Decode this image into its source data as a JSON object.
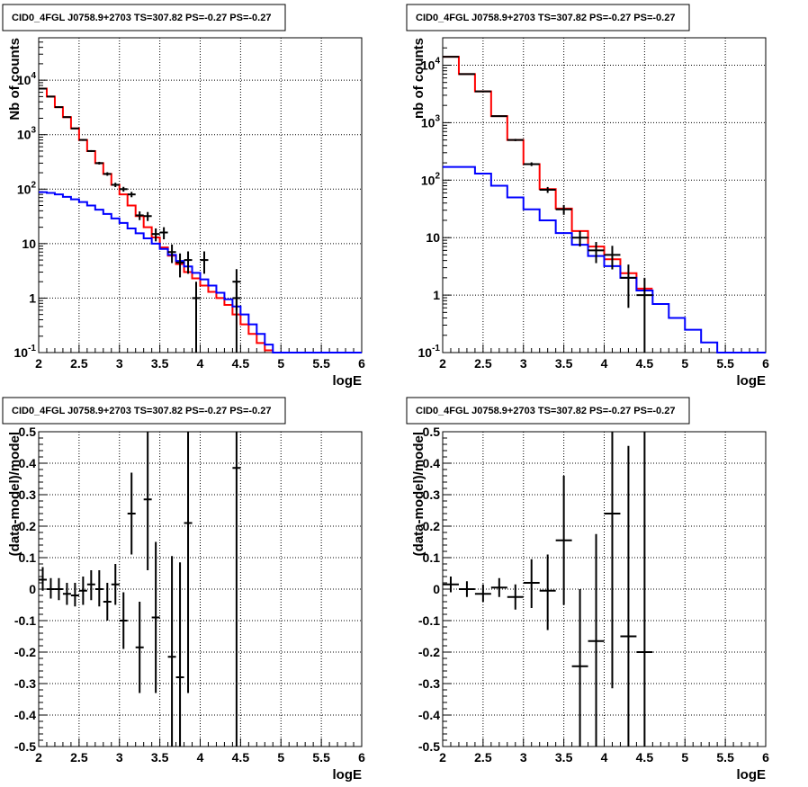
{
  "chart_data": [
    {
      "type": "line",
      "kind": "spectrum",
      "title": "CID0_4FGL J0758.9+2703 TS=307.82 PS=-0.27 PS=-0.27",
      "xlabel": "logE",
      "ylabel": "Nb of counts",
      "xlim": [
        2,
        6
      ],
      "ylim": [
        0.1,
        60000
      ],
      "yscale": "log",
      "grid": true,
      "x_ticks": [
        "2",
        "2.5",
        "3",
        "3.5",
        "4",
        "4.5",
        "5",
        "5.5",
        "6"
      ],
      "x_tick_values": [
        2,
        2.5,
        3,
        3.5,
        4,
        4.5,
        5,
        5.5,
        6
      ],
      "y_ticks": [
        "10^-1",
        "1",
        "10",
        "10^2",
        "10^3",
        "10^4"
      ],
      "y_tick_values": [
        0.1,
        1,
        10,
        100,
        1000,
        10000
      ],
      "bin_edges": [
        2.0,
        2.1,
        2.2,
        2.3,
        2.4,
        2.5,
        2.6,
        2.7,
        2.8,
        2.9,
        3.0,
        3.1,
        3.2,
        3.3,
        3.4,
        3.5,
        3.6,
        3.7,
        3.8,
        3.9,
        4.0,
        4.1,
        4.2,
        4.3,
        4.4,
        4.5,
        4.6,
        4.7,
        4.8,
        4.9,
        5.0,
        5.1,
        5.2,
        5.3,
        5.4,
        5.5,
        5.6,
        5.7,
        5.8,
        5.9,
        6.0
      ],
      "series": [
        {
          "color": "#ff0000",
          "values": [
            7000,
            5000,
            3200,
            2100,
            1300,
            800,
            500,
            300,
            190,
            120,
            80,
            50,
            32,
            20,
            13,
            8.5,
            6,
            4.2,
            3,
            2.3,
            1.7,
            1.3,
            1.0,
            0.75,
            0.5,
            0.33,
            0.22,
            0.15,
            0.11
          ]
        },
        {
          "color": "#0000ff",
          "values": [
            88,
            85,
            80,
            72,
            65,
            58,
            50,
            42,
            35,
            29,
            24,
            19,
            15.5,
            12.5,
            10,
            8,
            6.2,
            4.8,
            3.8,
            2.9,
            2.2,
            1.7,
            1.25,
            0.95,
            0.7,
            0.5,
            0.33,
            0.22,
            0.14,
            0.1,
            0.1,
            0.1,
            0.1,
            0.1,
            0.1,
            0.1,
            0.1,
            0.1,
            0.1,
            0.1
          ]
        }
      ],
      "points": [
        {
          "x": 2.05,
          "y": 7000,
          "xerr": 0.05,
          "ylo": 6900,
          "yhi": 7100
        },
        {
          "x": 2.15,
          "y": 5000,
          "xerr": 0.05,
          "ylo": 4900,
          "yhi": 5100
        },
        {
          "x": 2.25,
          "y": 3200,
          "xerr": 0.05,
          "ylo": 3100,
          "yhi": 3300
        },
        {
          "x": 2.35,
          "y": 2100,
          "xerr": 0.05,
          "ylo": 2040,
          "yhi": 2160
        },
        {
          "x": 2.45,
          "y": 1300,
          "xerr": 0.05,
          "ylo": 1260,
          "yhi": 1340
        },
        {
          "x": 2.55,
          "y": 800,
          "xerr": 0.05,
          "ylo": 770,
          "yhi": 830
        },
        {
          "x": 2.65,
          "y": 500,
          "xerr": 0.05,
          "ylo": 480,
          "yhi": 520
        },
        {
          "x": 2.75,
          "y": 300,
          "xerr": 0.05,
          "ylo": 283,
          "yhi": 317
        },
        {
          "x": 2.85,
          "y": 190,
          "xerr": 0.05,
          "ylo": 176,
          "yhi": 204
        },
        {
          "x": 2.95,
          "y": 120,
          "xerr": 0.05,
          "ylo": 109,
          "yhi": 131
        },
        {
          "x": 3.05,
          "y": 100,
          "xerr": 0.05,
          "ylo": 90,
          "yhi": 110
        },
        {
          "x": 3.15,
          "y": 80,
          "xerr": 0.05,
          "ylo": 71,
          "yhi": 89
        },
        {
          "x": 3.25,
          "y": 33,
          "xerr": 0.05,
          "ylo": 27,
          "yhi": 39
        },
        {
          "x": 3.35,
          "y": 32,
          "xerr": 0.05,
          "ylo": 26,
          "yhi": 38
        },
        {
          "x": 3.45,
          "y": 15,
          "xerr": 0.05,
          "ylo": 11,
          "yhi": 19
        },
        {
          "x": 3.55,
          "y": 16,
          "xerr": 0.05,
          "ylo": 12,
          "yhi": 20
        },
        {
          "x": 3.65,
          "y": 7,
          "xerr": 0.05,
          "ylo": 4.4,
          "yhi": 9.6
        },
        {
          "x": 3.75,
          "y": 4.5,
          "xerr": 0.05,
          "ylo": 2.4,
          "yhi": 6.6
        },
        {
          "x": 3.85,
          "y": 5,
          "xerr": 0.05,
          "ylo": 2.8,
          "yhi": 7.2
        },
        {
          "x": 3.95,
          "y": 1,
          "xerr": 0.05,
          "ylo": 0.1,
          "yhi": 2
        },
        {
          "x": 4.05,
          "y": 5,
          "xerr": 0.05,
          "ylo": 2.8,
          "yhi": 7.2
        },
        {
          "x": 4.45,
          "y": 2,
          "xerr": 0.05,
          "ylo": 0.6,
          "yhi": 3.4
        },
        {
          "x": 4.45,
          "y": 1,
          "xerr": 0.05,
          "ylo": 0.1,
          "yhi": 2
        }
      ]
    },
    {
      "type": "line",
      "kind": "spectrum",
      "title": "CID0_4FGL J0758.9+2703 TS=307.82 PS=-0.27 PS=-0.27",
      "xlabel": "logE",
      "ylabel": "nb of counts",
      "xlim": [
        2,
        6
      ],
      "ylim": [
        0.1,
        30000
      ],
      "yscale": "log",
      "grid": true,
      "x_ticks": [
        "2",
        "2.5",
        "3",
        "3.5",
        "4",
        "4.5",
        "5",
        "5.5",
        "6"
      ],
      "x_tick_values": [
        2,
        2.5,
        3,
        3.5,
        4,
        4.5,
        5,
        5.5,
        6
      ],
      "y_ticks": [
        "10^-1",
        "1",
        "10",
        "10^2",
        "10^3",
        "10^4"
      ],
      "y_tick_values": [
        0.1,
        1,
        10,
        100,
        1000,
        10000
      ],
      "bin_edges": [
        2.0,
        2.2,
        2.4,
        2.6,
        2.8,
        3.0,
        3.2,
        3.4,
        3.6,
        3.8,
        4.0,
        4.2,
        4.4,
        4.6,
        4.8,
        5.0,
        5.2,
        5.4,
        5.6,
        5.8,
        6.0
      ],
      "series": [
        {
          "color": "#ff0000",
          "values": [
            14000,
            7000,
            3500,
            1300,
            500,
            190,
            70,
            32,
            13,
            7,
            4.2,
            2.4,
            1.3
          ]
        },
        {
          "color": "#0000ff",
          "values": [
            170,
            170,
            130,
            80,
            50,
            31,
            20,
            12,
            7.5,
            4.8,
            3.2,
            2,
            1.2,
            0.7,
            0.4,
            0.25,
            0.15,
            0.1,
            0.1,
            0.1
          ]
        }
      ],
      "points": [
        {
          "x": 2.1,
          "y": 14000,
          "xerr": 0.1,
          "ylo": 13800,
          "yhi": 14200
        },
        {
          "x": 2.3,
          "y": 7000,
          "xerr": 0.1,
          "ylo": 6900,
          "yhi": 7100
        },
        {
          "x": 2.5,
          "y": 3500,
          "xerr": 0.1,
          "ylo": 3440,
          "yhi": 3560
        },
        {
          "x": 2.7,
          "y": 1300,
          "xerr": 0.1,
          "ylo": 1264,
          "yhi": 1336
        },
        {
          "x": 2.9,
          "y": 500,
          "xerr": 0.1,
          "ylo": 478,
          "yhi": 522
        },
        {
          "x": 3.1,
          "y": 190,
          "xerr": 0.1,
          "ylo": 176,
          "yhi": 204
        },
        {
          "x": 3.3,
          "y": 68,
          "xerr": 0.1,
          "ylo": 60,
          "yhi": 76
        },
        {
          "x": 3.5,
          "y": 31,
          "xerr": 0.1,
          "ylo": 25,
          "yhi": 37
        },
        {
          "x": 3.7,
          "y": 10,
          "xerr": 0.1,
          "ylo": 7,
          "yhi": 13
        },
        {
          "x": 3.9,
          "y": 6,
          "xerr": 0.1,
          "ylo": 3.6,
          "yhi": 8.4
        },
        {
          "x": 4.1,
          "y": 5,
          "xerr": 0.1,
          "ylo": 2.8,
          "yhi": 7.2
        },
        {
          "x": 4.3,
          "y": 2,
          "xerr": 0.1,
          "ylo": 0.6,
          "yhi": 3.4
        },
        {
          "x": 4.5,
          "y": 1,
          "xerr": 0.1,
          "ylo": 0.1,
          "yhi": 2
        }
      ]
    },
    {
      "type": "scatter",
      "kind": "residual",
      "title": "CID0_4FGL J0758.9+2703 TS=307.82 PS=-0.27 PS=-0.27",
      "xlabel": "logE",
      "ylabel": "(data-model)/model",
      "xlim": [
        2,
        6
      ],
      "ylim": [
        -0.5,
        0.5
      ],
      "grid": true,
      "x_ticks": [
        "2",
        "2.5",
        "3",
        "3.5",
        "4",
        "4.5",
        "5",
        "5.5",
        "6"
      ],
      "x_tick_values": [
        2,
        2.5,
        3,
        3.5,
        4,
        4.5,
        5,
        5.5,
        6
      ],
      "y_ticks": [
        "0.5",
        "0.4",
        "0.3",
        "0.2",
        "0.1",
        "0",
        "-0.1",
        "-0.2",
        "-0.3",
        "-0.4",
        "-0.5"
      ],
      "y_tick_values": [
        0.5,
        0.4,
        0.3,
        0.2,
        0.1,
        0,
        -0.1,
        -0.2,
        -0.3,
        -0.4,
        -0.5
      ],
      "points": [
        {
          "x": 2.05,
          "y": 0.03,
          "xerr": 0.05,
          "ylo": -0.005,
          "yhi": 0.07
        },
        {
          "x": 2.15,
          "y": 0.0,
          "xerr": 0.05,
          "ylo": -0.03,
          "yhi": 0.035
        },
        {
          "x": 2.25,
          "y": 0.0,
          "xerr": 0.05,
          "ylo": -0.035,
          "yhi": 0.035
        },
        {
          "x": 2.35,
          "y": -0.015,
          "xerr": 0.05,
          "ylo": -0.05,
          "yhi": 0.02
        },
        {
          "x": 2.45,
          "y": -0.02,
          "xerr": 0.05,
          "ylo": -0.055,
          "yhi": 0.02
        },
        {
          "x": 2.55,
          "y": -0.005,
          "xerr": 0.05,
          "ylo": -0.05,
          "yhi": 0.04
        },
        {
          "x": 2.65,
          "y": 0.015,
          "xerr": 0.05,
          "ylo": -0.035,
          "yhi": 0.06
        },
        {
          "x": 2.75,
          "y": 0.0,
          "xerr": 0.05,
          "ylo": -0.055,
          "yhi": 0.06
        },
        {
          "x": 2.85,
          "y": -0.04,
          "xerr": 0.05,
          "ylo": -0.1,
          "yhi": 0.02
        },
        {
          "x": 2.95,
          "y": 0.015,
          "xerr": 0.05,
          "ylo": -0.05,
          "yhi": 0.08
        },
        {
          "x": 3.05,
          "y": -0.1,
          "xerr": 0.05,
          "ylo": -0.19,
          "yhi": -0.01
        },
        {
          "x": 3.15,
          "y": 0.24,
          "xerr": 0.05,
          "ylo": 0.11,
          "yhi": 0.37
        },
        {
          "x": 3.25,
          "y": -0.185,
          "xerr": 0.05,
          "ylo": -0.33,
          "yhi": -0.04
        },
        {
          "x": 3.35,
          "y": 0.285,
          "xerr": 0.05,
          "ylo": 0.06,
          "yhi": 0.5
        },
        {
          "x": 3.45,
          "y": -0.09,
          "xerr": 0.05,
          "ylo": -0.33,
          "yhi": 0.15
        },
        {
          "x": 3.65,
          "y": -0.215,
          "xerr": 0.05,
          "ylo": -0.5,
          "yhi": 0.105
        },
        {
          "x": 3.75,
          "y": -0.28,
          "xerr": 0.05,
          "ylo": -0.5,
          "yhi": 0.085
        },
        {
          "x": 3.85,
          "y": 0.21,
          "xerr": 0.05,
          "ylo": -0.33,
          "yhi": 0.5
        },
        {
          "x": 4.45,
          "y": 0.385,
          "xerr": 0.05,
          "ylo": -0.5,
          "yhi": 0.5
        }
      ]
    },
    {
      "type": "scatter",
      "kind": "residual",
      "title": "CID0_4FGL J0758.9+2703 TS=307.82 PS=-0.27 PS=-0.27",
      "xlabel": "logE",
      "ylabel": "(data-model)/model",
      "xlim": [
        2,
        6
      ],
      "ylim": [
        -0.5,
        0.5
      ],
      "grid": true,
      "x_ticks": [
        "2",
        "2.5",
        "3",
        "3.5",
        "4",
        "4.5",
        "5",
        "5.5",
        "6"
      ],
      "x_tick_values": [
        2,
        2.5,
        3,
        3.5,
        4,
        4.5,
        5,
        5.5,
        6
      ],
      "y_ticks": [
        "0.5",
        "0.4",
        "0.3",
        "0.2",
        "0.1",
        "0",
        "-0.1",
        "-0.2",
        "-0.3",
        "-0.4",
        "-0.5"
      ],
      "y_tick_values": [
        0.5,
        0.4,
        0.3,
        0.2,
        0.1,
        0,
        -0.1,
        -0.2,
        -0.3,
        -0.4,
        -0.5
      ],
      "points": [
        {
          "x": 2.1,
          "y": 0.015,
          "xerr": 0.1,
          "ylo": -0.01,
          "yhi": 0.04
        },
        {
          "x": 2.3,
          "y": 0.0,
          "xerr": 0.1,
          "ylo": -0.025,
          "yhi": 0.025
        },
        {
          "x": 2.5,
          "y": -0.015,
          "xerr": 0.1,
          "ylo": -0.04,
          "yhi": 0.015
        },
        {
          "x": 2.7,
          "y": 0.005,
          "xerr": 0.1,
          "ylo": -0.025,
          "yhi": 0.035
        },
        {
          "x": 2.9,
          "y": -0.025,
          "xerr": 0.1,
          "ylo": -0.065,
          "yhi": 0.015
        },
        {
          "x": 3.1,
          "y": 0.02,
          "xerr": 0.1,
          "ylo": -0.06,
          "yhi": 0.095
        },
        {
          "x": 3.3,
          "y": -0.005,
          "xerr": 0.1,
          "ylo": -0.13,
          "yhi": 0.11
        },
        {
          "x": 3.5,
          "y": 0.155,
          "xerr": 0.1,
          "ylo": -0.05,
          "yhi": 0.36
        },
        {
          "x": 3.7,
          "y": -0.245,
          "xerr": 0.1,
          "ylo": -0.5,
          "yhi": 0.0
        },
        {
          "x": 3.9,
          "y": -0.165,
          "xerr": 0.1,
          "ylo": -0.5,
          "yhi": 0.175
        },
        {
          "x": 4.1,
          "y": 0.24,
          "xerr": 0.1,
          "ylo": -0.315,
          "yhi": 0.5
        },
        {
          "x": 4.3,
          "y": -0.15,
          "xerr": 0.1,
          "ylo": -0.5,
          "yhi": 0.455
        },
        {
          "x": 4.5,
          "y": -0.2,
          "xerr": 0.1,
          "ylo": -0.5,
          "yhi": 0.5
        }
      ]
    }
  ]
}
